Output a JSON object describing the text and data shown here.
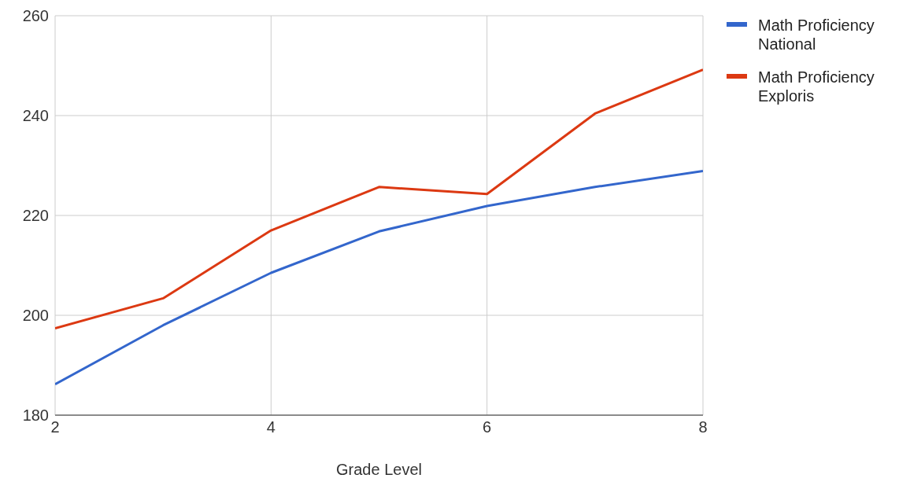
{
  "chart_data": {
    "type": "line",
    "xlabel": "Grade Level",
    "x": [
      2,
      3,
      4,
      5,
      6,
      7,
      8
    ],
    "series": [
      {
        "name": "Math Proficiency National",
        "color": "#3366cc",
        "values": [
          186.2,
          198,
          208.5,
          216.8,
          221.9,
          225.7,
          228.9
        ]
      },
      {
        "name": "Math Proficiency Exploris",
        "color": "#dc3912",
        "values": [
          197.4,
          203.4,
          217,
          225.7,
          224.3,
          240.4,
          249.2
        ]
      }
    ],
    "xlim": [
      2,
      8
    ],
    "xticks": [
      2,
      4,
      6,
      8
    ],
    "ylim": [
      180,
      260
    ],
    "yticks": [
      180,
      200,
      220,
      240,
      260
    ],
    "grid": true,
    "legend": "top right",
    "marker": "none",
    "line_style": "solid"
  }
}
